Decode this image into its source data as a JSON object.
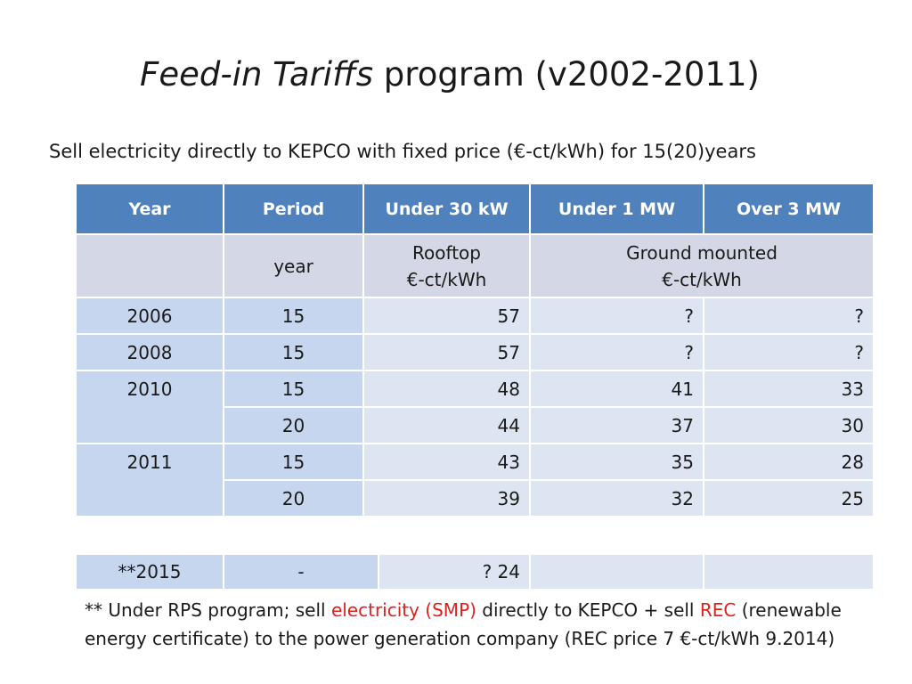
{
  "title": {
    "italic": "Feed-in Tariffs",
    "rest": " program (v2002-2011)"
  },
  "subtitle": "Sell electricity directly to KEPCO with fixed price (€-ct/kWh) for 15(20)years",
  "table": {
    "headers": [
      "Year",
      "Period",
      "Under 30 kW",
      "Under 1 MW",
      "Over 3 MW"
    ],
    "units": {
      "period": "year",
      "rooftop_line1": "Rooftop",
      "rooftop_line2": "€-ct/kWh",
      "ground_line1": "Ground mounted",
      "ground_line2": "€-ct/kWh"
    },
    "rows": [
      {
        "year": "2006",
        "period": "15",
        "u30": "57",
        "u1": "?",
        "o3": "?"
      },
      {
        "year": "2008",
        "period": "15",
        "u30": "57",
        "u1": "?",
        "o3": "?"
      },
      {
        "year": "2010",
        "period": "15",
        "u30": "48",
        "u1": "41",
        "o3": "33"
      },
      {
        "year": "",
        "period": "20",
        "u30": "44",
        "u1": "37",
        "o3": "30"
      },
      {
        "year": "2011",
        "period": "15",
        "u30": "43",
        "u1": "35",
        "o3": "28"
      },
      {
        "year": "",
        "period": "20",
        "u30": "39",
        "u1": "32",
        "o3": "25"
      }
    ]
  },
  "extra_row": {
    "year": "**2015",
    "period": "-",
    "value": "? 24"
  },
  "note": {
    "p1": "** Under RPS program; sell ",
    "red1": "electricity (SMP)",
    "p2": " directly to KEPCO + sell ",
    "red2": "REC",
    "p3": " (renewable energy certificate) to the power generation company (REC price 7 €-ct/kWh 9.2014)"
  },
  "colors": {
    "header": "#4f81bd",
    "year_col": "#c6d6ee",
    "value_cell": "#dde5f3",
    "unit_row": "#d3d7e6",
    "note_red": "#e0201c"
  }
}
